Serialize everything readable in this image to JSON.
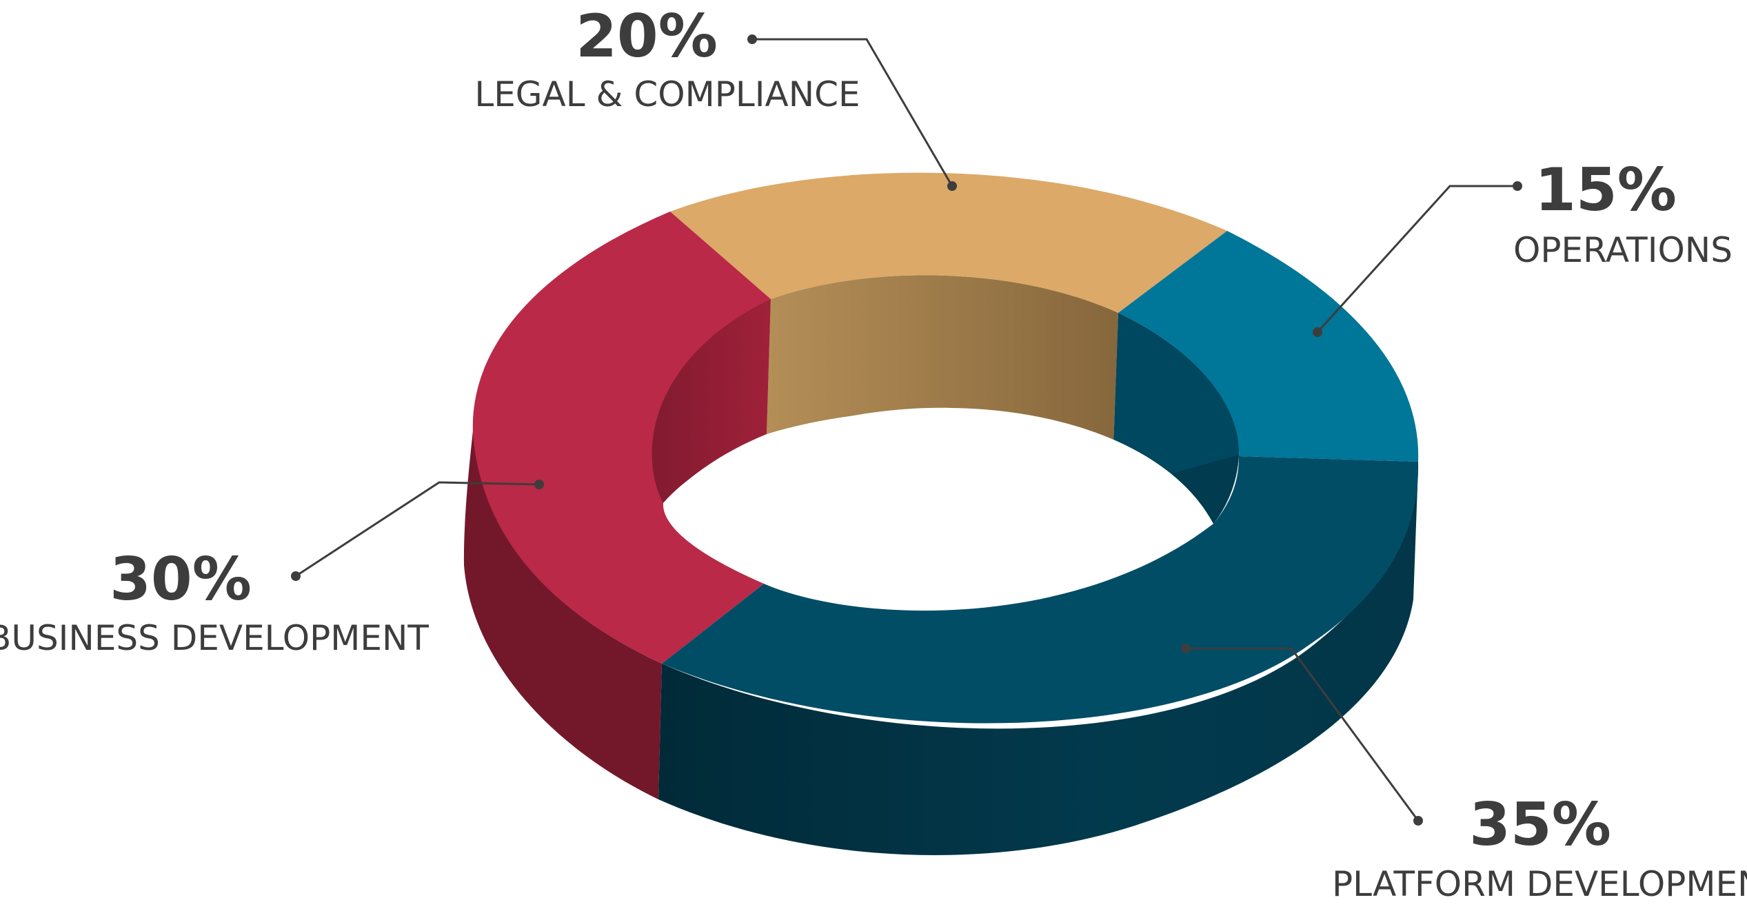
{
  "chart_data": {
    "type": "pie",
    "style": "3d-donut",
    "title": "",
    "slices": [
      {
        "label": "LEGAL & COMPLIANCE",
        "value": 20,
        "value_label": "20%",
        "color": "#DCA968"
      },
      {
        "label": "OPERATIONS",
        "value": 15,
        "value_label": "15%",
        "color": "#007699"
      },
      {
        "label": "PLATFORM DEVELOPMENT",
        "value": 35,
        "value_label": "35%",
        "color": "#024D66"
      },
      {
        "label": "BUSINESS DEVELOPMENT",
        "value": 30,
        "value_label": "30%",
        "color": "#BA2947"
      }
    ],
    "text_color": "#3D3D3D"
  }
}
